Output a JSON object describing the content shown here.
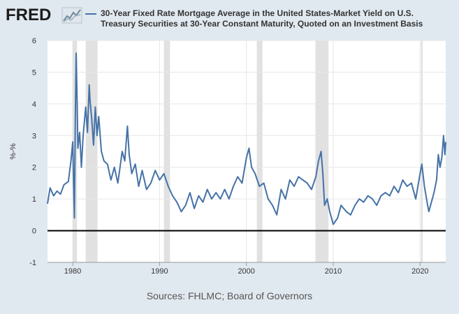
{
  "brand": {
    "logo_text": "FRED",
    "logo_icon": "line-chart-icon"
  },
  "source_text": "Sources: FHLMC; Board of Governors",
  "colors": {
    "background": "#e1e9f0",
    "plot_background": "#ffffff",
    "series": "#4572a7",
    "recession": "#e1e1e1",
    "zero_line": "#000000"
  },
  "chart_data": {
    "type": "line",
    "title": "",
    "xlabel": "",
    "ylabel": "%-%",
    "xlim": [
      1977.1,
      2022.95
    ],
    "ylim": [
      -1,
      6
    ],
    "yticks": [
      -1,
      0,
      1,
      2,
      3,
      4,
      5,
      6
    ],
    "xticks": [
      1980,
      1990,
      2000,
      2010,
      2020
    ],
    "grid": true,
    "legend_position": "top",
    "series": [
      {
        "name": "30-Year Fixed Rate Mortgage Average in the United States-Market Yield on U.S. Treasury Securities at 30-Year Constant Maturity, Quoted on an Investment Basis",
        "x": [
          1977.1,
          1977.4,
          1977.8,
          1978.2,
          1978.6,
          1979.0,
          1979.5,
          1979.8,
          1980.0,
          1980.1,
          1980.2,
          1980.3,
          1980.4,
          1980.5,
          1980.6,
          1980.8,
          1981.0,
          1981.2,
          1981.5,
          1981.7,
          1981.9,
          1982.0,
          1982.2,
          1982.4,
          1982.6,
          1982.8,
          1983.0,
          1983.3,
          1983.6,
          1984.0,
          1984.4,
          1984.8,
          1985.2,
          1985.4,
          1985.7,
          1986.0,
          1986.3,
          1986.5,
          1986.8,
          1987.2,
          1987.6,
          1988.0,
          1988.5,
          1989.0,
          1989.5,
          1990.0,
          1990.5,
          1991.0,
          1991.5,
          1992.0,
          1992.5,
          1993.0,
          1993.5,
          1994.0,
          1994.5,
          1995.0,
          1995.5,
          1996.0,
          1996.5,
          1997.0,
          1997.5,
          1998.0,
          1998.5,
          1999.0,
          1999.5,
          2000.0,
          2000.3,
          2000.6,
          2001.0,
          2001.5,
          2002.0,
          2002.5,
          2003.0,
          2003.5,
          2004.0,
          2004.5,
          2005.0,
          2005.5,
          2006.0,
          2006.5,
          2007.0,
          2007.5,
          2008.0,
          2008.3,
          2008.6,
          2008.8,
          2009.0,
          2009.3,
          2009.6,
          2010.0,
          2010.5,
          2010.9,
          2011.5,
          2012.0,
          2012.5,
          2013.0,
          2013.5,
          2014.0,
          2014.5,
          2015.0,
          2015.5,
          2016.0,
          2016.5,
          2017.0,
          2017.5,
          2018.0,
          2018.5,
          2019.0,
          2019.5,
          2020.0,
          2020.2,
          2020.5,
          2020.8,
          2021.0,
          2021.3,
          2021.6,
          2021.9,
          2022.1,
          2022.3,
          2022.5,
          2022.7,
          2022.85,
          2022.95
        ],
        "values": [
          0.85,
          1.35,
          1.1,
          1.25,
          1.15,
          1.45,
          1.55,
          2.2,
          2.8,
          1.5,
          0.4,
          3.5,
          5.6,
          4.2,
          2.6,
          3.1,
          2.0,
          3.0,
          3.9,
          3.1,
          4.6,
          4.1,
          3.5,
          2.7,
          3.9,
          3.0,
          3.6,
          2.5,
          2.2,
          2.1,
          1.6,
          2.0,
          1.5,
          1.9,
          2.5,
          2.2,
          3.3,
          2.4,
          1.8,
          2.1,
          1.4,
          1.9,
          1.3,
          1.5,
          1.9,
          1.6,
          1.8,
          1.4,
          1.1,
          0.9,
          0.6,
          0.8,
          1.2,
          0.7,
          1.1,
          0.9,
          1.3,
          1.0,
          1.2,
          1.0,
          1.3,
          1.0,
          1.4,
          1.7,
          1.5,
          2.3,
          2.6,
          2.0,
          1.8,
          1.4,
          1.5,
          1.0,
          0.8,
          0.5,
          1.3,
          1.0,
          1.6,
          1.4,
          1.7,
          1.6,
          1.5,
          1.3,
          1.7,
          2.2,
          2.5,
          1.8,
          0.8,
          1.0,
          0.6,
          0.2,
          0.4,
          0.8,
          0.6,
          0.5,
          0.8,
          1.0,
          0.9,
          1.1,
          1.0,
          0.8,
          1.1,
          1.2,
          1.1,
          1.4,
          1.2,
          1.6,
          1.4,
          1.5,
          1.0,
          1.8,
          2.1,
          1.4,
          0.9,
          0.6,
          0.9,
          1.2,
          1.6,
          2.4,
          2.0,
          2.3,
          3.0,
          2.4,
          2.8
        ]
      }
    ],
    "recessions": [
      [
        1980.0,
        1980.5
      ],
      [
        1981.5,
        1982.85
      ],
      [
        1990.5,
        1991.2
      ],
      [
        2001.2,
        2001.85
      ],
      [
        2007.95,
        2009.45
      ],
      [
        2020.1,
        2020.3
      ]
    ]
  }
}
